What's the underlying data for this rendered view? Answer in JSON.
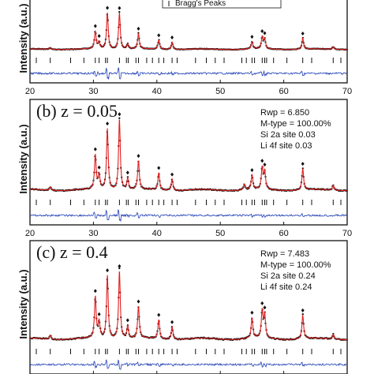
{
  "colors": {
    "observed": "#111111",
    "calculated": "#e02020",
    "difference": "#1f3fb5",
    "bragg": "#111111",
    "frame": "#111111"
  },
  "chart_data": [
    {
      "type": "line",
      "panel": "a",
      "panel_label": "",
      "legend": {
        "items": [
          "Bragg's Peaks"
        ],
        "placement": "top-right"
      },
      "annotations": [],
      "ylabel": "Intensity (a.u.)",
      "xlabel": "",
      "xlim": [
        20,
        70
      ],
      "x_ticks": [
        20,
        30,
        40,
        50,
        60,
        70
      ],
      "peaks": [
        {
          "x": 23.2,
          "h": 0.05
        },
        {
          "x": 30.3,
          "h": 0.48
        },
        {
          "x": 30.9,
          "h": 0.18
        },
        {
          "x": 32.2,
          "h": 1.0
        },
        {
          "x": 34.1,
          "h": 1.0
        },
        {
          "x": 35.4,
          "h": 0.14
        },
        {
          "x": 37.1,
          "h": 0.42
        },
        {
          "x": 40.3,
          "h": 0.25
        },
        {
          "x": 42.4,
          "h": 0.2
        },
        {
          "x": 55.0,
          "h": 0.2
        },
        {
          "x": 56.6,
          "h": 0.32
        },
        {
          "x": 57.0,
          "h": 0.26
        },
        {
          "x": 63.0,
          "h": 0.3
        },
        {
          "x": 67.8,
          "h": 0.07
        }
      ],
      "bragg_positions": [
        21.0,
        23.2,
        26.4,
        28.5,
        30.3,
        30.9,
        31.9,
        32.2,
        34.1,
        35.2,
        35.5,
        36.7,
        37.1,
        38.4,
        39.3,
        40.3,
        41.1,
        42.4,
        43.2,
        46.1,
        47.8,
        49.2,
        50.6,
        53.4,
        54.1,
        55.0,
        55.4,
        56.6,
        57.0,
        57.3,
        58.4,
        60.5,
        63.0,
        64.4,
        67.8,
        69.0
      ]
    },
    {
      "type": "line",
      "panel": "b",
      "panel_label": "(b) z = 0.05",
      "legend": null,
      "annotations": [
        "Rwp = 6.850",
        "M-type = 100.00%",
        "Si 2a site 0.03",
        "Li 4f site 0.03"
      ],
      "ylabel": "Intensity (a.u.)",
      "xlabel": "",
      "xlim": [
        20,
        70
      ],
      "x_ticks": [
        20,
        30,
        40,
        50,
        60,
        70
      ],
      "peaks": [
        {
          "x": 23.2,
          "h": 0.05
        },
        {
          "x": 30.3,
          "h": 0.48
        },
        {
          "x": 30.9,
          "h": 0.2
        },
        {
          "x": 32.2,
          "h": 0.86
        },
        {
          "x": 34.1,
          "h": 1.0
        },
        {
          "x": 35.4,
          "h": 0.16
        },
        {
          "x": 37.1,
          "h": 0.4
        },
        {
          "x": 40.3,
          "h": 0.24
        },
        {
          "x": 42.4,
          "h": 0.16
        },
        {
          "x": 53.8,
          "h": 0.08
        },
        {
          "x": 55.0,
          "h": 0.2
        },
        {
          "x": 56.6,
          "h": 0.3
        },
        {
          "x": 57.0,
          "h": 0.24
        },
        {
          "x": 63.0,
          "h": 0.3
        },
        {
          "x": 67.8,
          "h": 0.07
        }
      ],
      "bragg_positions": [
        21.0,
        23.2,
        26.4,
        28.5,
        30.3,
        30.9,
        31.9,
        32.2,
        34.1,
        35.2,
        35.5,
        36.7,
        37.1,
        38.4,
        39.3,
        40.3,
        41.1,
        42.4,
        43.2,
        46.1,
        47.8,
        49.2,
        50.6,
        53.4,
        54.1,
        55.0,
        55.4,
        56.6,
        57.0,
        57.3,
        58.4,
        60.5,
        63.0,
        64.4,
        67.8,
        69.0
      ]
    },
    {
      "type": "line",
      "panel": "c",
      "panel_label": "(c) z = 0.4",
      "legend": null,
      "annotations": [
        "Rwp = 7.483",
        "M-type = 100.00%",
        "Si 2a site 0.24",
        "Li 4f site 0.24"
      ],
      "ylabel": "Intensity (a.u.)",
      "xlabel": "",
      "xlim": [
        20,
        70
      ],
      "x_ticks": [],
      "peaks": [
        {
          "x": 23.2,
          "h": 0.05
        },
        {
          "x": 30.3,
          "h": 0.52
        },
        {
          "x": 30.9,
          "h": 0.2
        },
        {
          "x": 32.2,
          "h": 0.8
        },
        {
          "x": 34.1,
          "h": 0.86
        },
        {
          "x": 35.4,
          "h": 0.16
        },
        {
          "x": 37.1,
          "h": 0.4
        },
        {
          "x": 40.3,
          "h": 0.24
        },
        {
          "x": 42.4,
          "h": 0.16
        },
        {
          "x": 55.0,
          "h": 0.26
        },
        {
          "x": 56.6,
          "h": 0.34
        },
        {
          "x": 57.0,
          "h": 0.28
        },
        {
          "x": 63.0,
          "h": 0.3
        },
        {
          "x": 67.8,
          "h": 0.06
        }
      ],
      "bragg_positions": [
        21.0,
        23.2,
        26.4,
        28.5,
        30.3,
        30.9,
        31.9,
        32.2,
        34.1,
        35.2,
        35.5,
        36.7,
        37.1,
        38.4,
        39.3,
        40.3,
        41.1,
        42.4,
        43.2,
        46.1,
        47.8,
        49.2,
        50.6,
        53.4,
        54.1,
        55.0,
        55.4,
        56.6,
        57.0,
        57.3,
        58.4,
        60.5,
        63.0,
        64.4,
        67.8,
        69.0
      ]
    }
  ]
}
